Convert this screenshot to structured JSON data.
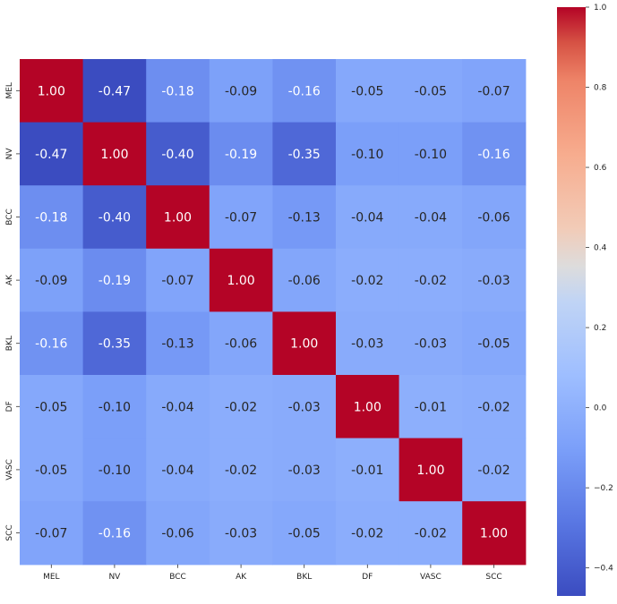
{
  "chart_data": {
    "type": "heatmap",
    "title": "",
    "xlabel": "",
    "ylabel": "",
    "categories": [
      "MEL",
      "NV",
      "BCC",
      "AK",
      "BKL",
      "DF",
      "VASC",
      "SCC"
    ],
    "matrix": [
      [
        1.0,
        -0.47,
        -0.18,
        -0.09,
        -0.16,
        -0.05,
        -0.05,
        -0.07
      ],
      [
        -0.47,
        1.0,
        -0.4,
        -0.19,
        -0.35,
        -0.1,
        -0.1,
        -0.16
      ],
      [
        -0.18,
        -0.4,
        1.0,
        -0.07,
        -0.13,
        -0.04,
        -0.04,
        -0.06
      ],
      [
        -0.09,
        -0.19,
        -0.07,
        1.0,
        -0.06,
        -0.02,
        -0.02,
        -0.03
      ],
      [
        -0.16,
        -0.35,
        -0.13,
        -0.06,
        1.0,
        -0.03,
        -0.03,
        -0.05
      ],
      [
        -0.05,
        -0.1,
        -0.04,
        -0.02,
        -0.03,
        1.0,
        -0.01,
        -0.02
      ],
      [
        -0.05,
        -0.1,
        -0.04,
        -0.02,
        -0.03,
        -0.01,
        1.0,
        -0.02
      ],
      [
        -0.07,
        -0.16,
        -0.06,
        -0.03,
        -0.05,
        -0.02,
        -0.02,
        1.0
      ]
    ],
    "colormap": "coolwarm",
    "vmin": -0.47,
    "vmax": 1.0,
    "annotation_format": "0.00",
    "colorbar": {
      "placement": "right",
      "ticks": [
        1.0,
        0.8,
        0.6,
        0.4,
        0.2,
        0.0,
        -0.2,
        -0.4
      ],
      "tick_labels": [
        "1.0",
        "0.8",
        "0.6",
        "0.4",
        "0.2",
        "0.0",
        "−0.2",
        "−0.4"
      ]
    }
  }
}
